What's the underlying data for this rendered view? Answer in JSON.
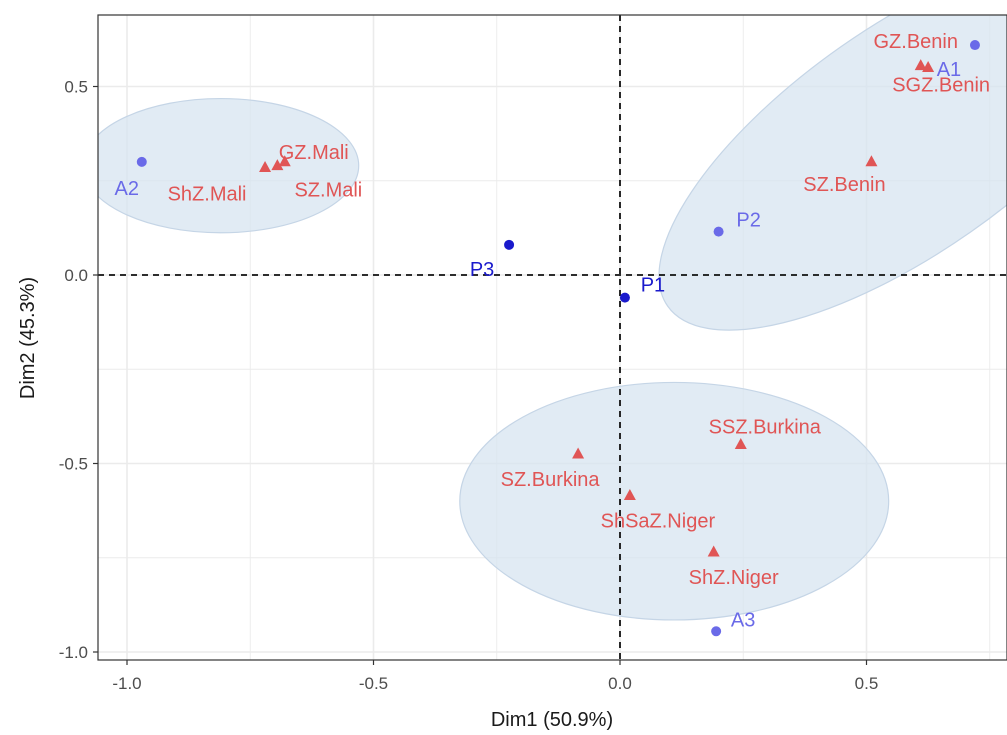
{
  "chart_data": {
    "type": "scatter",
    "xlabel": "Dim1 (50.9%)",
    "ylabel": "Dim2 (45.3%)",
    "xlim": [
      -1.05,
      0.78
    ],
    "ylim": [
      -1.02,
      0.7
    ],
    "x_ticks": [
      -1.0,
      -0.5,
      0.0,
      0.5
    ],
    "x_tick_labels": [
      "-1.0",
      "-0.5",
      "0.0",
      "0.5"
    ],
    "y_ticks": [
      -1.0,
      -0.5,
      0.0,
      0.5
    ],
    "y_tick_labels": [
      "-1.0",
      "-0.5",
      "0.0",
      "0.5"
    ],
    "grid": true,
    "reference_lines": {
      "x": 0.0,
      "y": 0.0,
      "style": "dashed"
    },
    "colors": {
      "individuals": "#e05555",
      "variables_light": "#6a6ae8",
      "variables_dark": "#1a1acc",
      "ellipse_fill": "#d6e3f0",
      "grid": "#ebebeb",
      "frame": "#333333"
    },
    "series": [
      {
        "marker": "triangle",
        "color": "#e05555",
        "points": [
          {
            "label": "GZ.Benin",
            "x": 0.61,
            "y": 0.555
          },
          {
            "label": "SGZ.Benin",
            "x": 0.625,
            "y": 0.55
          },
          {
            "label": "SZ.Benin",
            "x": 0.51,
            "y": 0.3
          },
          {
            "label": "GZ.Mali",
            "x": -0.68,
            "y": 0.3
          },
          {
            "label": "SZ.Mali",
            "x": -0.695,
            "y": 0.29
          },
          {
            "label": "ShZ.Mali",
            "x": -0.72,
            "y": 0.285
          },
          {
            "label": "SSZ.Burkina",
            "x": 0.245,
            "y": -0.45
          },
          {
            "label": "SZ.Burkina",
            "x": -0.085,
            "y": -0.475
          },
          {
            "label": "ShSaZ.Niger",
            "x": 0.02,
            "y": -0.585
          },
          {
            "label": "ShZ.Niger",
            "x": 0.19,
            "y": -0.735
          }
        ]
      },
      {
        "marker": "circle",
        "points": [
          {
            "label": "A1",
            "x": 0.72,
            "y": 0.61,
            "color": "#6a6ae8"
          },
          {
            "label": "A2",
            "x": -0.97,
            "y": 0.3,
            "color": "#6a6ae8"
          },
          {
            "label": "A3",
            "x": 0.195,
            "y": -0.945,
            "color": "#6a6ae8"
          },
          {
            "label": "P2",
            "x": 0.2,
            "y": 0.115,
            "color": "#6a6ae8"
          },
          {
            "label": "P1",
            "x": 0.01,
            "y": -0.06,
            "color": "#1a1acc"
          },
          {
            "label": "P3",
            "x": -0.225,
            "y": 0.08,
            "color": "#1a1acc"
          }
        ]
      }
    ],
    "ellipses": [
      {
        "cx": 0.58,
        "cy": 0.36,
        "rx": 0.59,
        "ry": 0.3,
        "angle_deg": -35
      },
      {
        "cx": -0.81,
        "cy": 0.29,
        "rx": 0.28,
        "ry": 0.178,
        "angle_deg": 0
      },
      {
        "cx": 0.11,
        "cy": -0.6,
        "rx": 0.435,
        "ry": 0.315,
        "angle_deg": 0
      }
    ]
  }
}
